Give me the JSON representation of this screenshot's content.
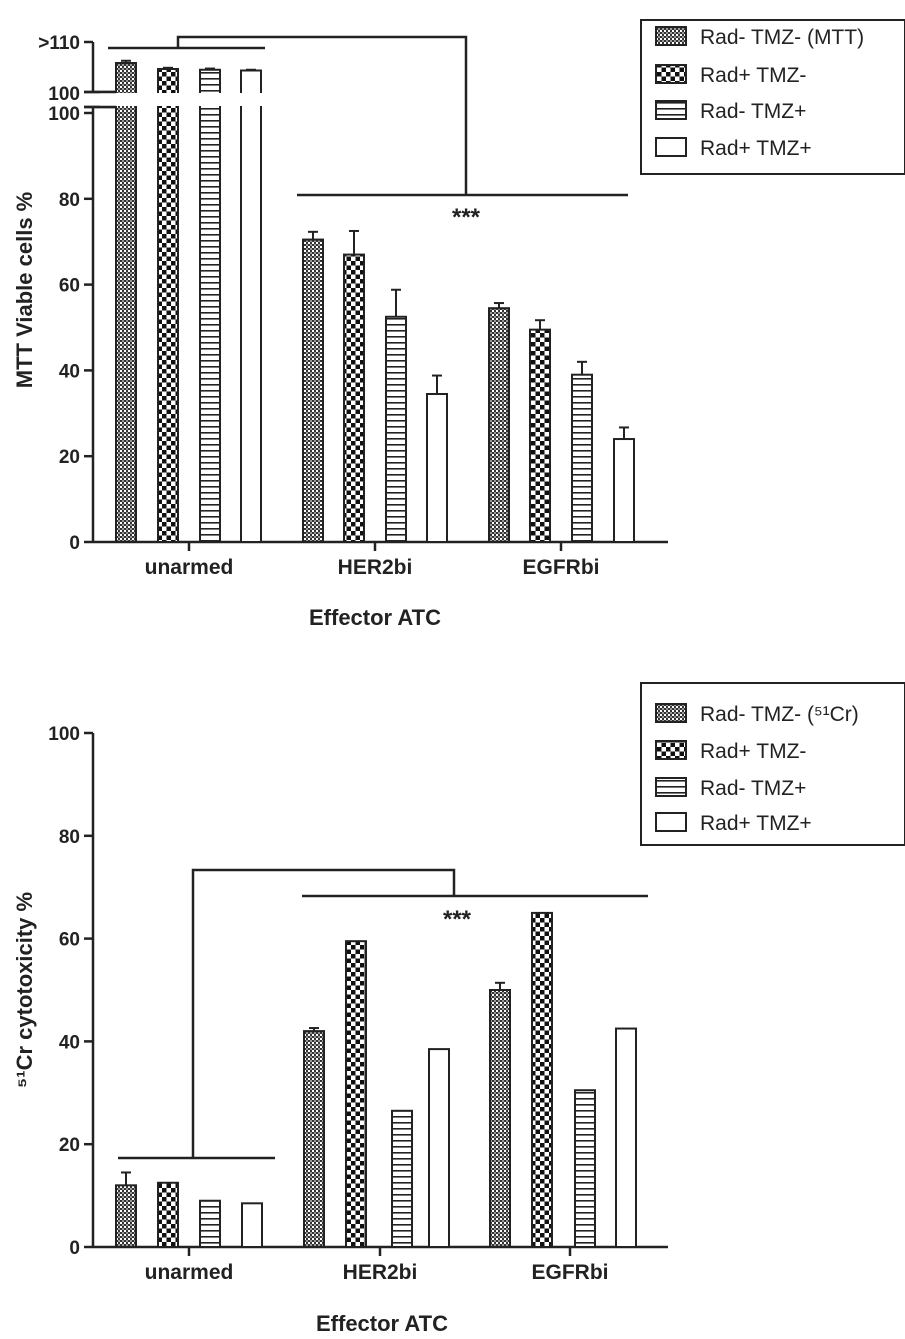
{
  "chart_data": [
    {
      "type": "bar",
      "xlabel": "Effector ATC",
      "ylabel": "MTT Viable cells %",
      "ylim": [
        0,
        100
      ],
      "y_ticks": [
        0,
        20,
        40,
        60,
        80,
        100
      ],
      "broken_axis_labels": [
        ">110",
        "100"
      ],
      "categories": [
        "unarmed",
        "HER2bi",
        "EGFRbi"
      ],
      "series": [
        {
          "name": "Rad- TMZ- (MTT)",
          "pattern": "crosshatch",
          "values": [
            108,
            70.5,
            54.5
          ],
          "errors": [
            1.5,
            1.8,
            1.2
          ]
        },
        {
          "name": "Rad+ TMZ-",
          "pattern": "checker",
          "values": [
            104,
            67,
            49.5
          ],
          "errors": [
            0.8,
            5.5,
            2.2
          ]
        },
        {
          "name": "Rad- TMZ+",
          "pattern": "horizontal-lines",
          "values": [
            103.5,
            52.5,
            39
          ],
          "errors": [
            0.8,
            6.3,
            3.0
          ]
        },
        {
          "name": "Rad+ TMZ+",
          "pattern": "open",
          "values": [
            103,
            34.5,
            24
          ],
          "errors": [
            0.5,
            4.3,
            2.7
          ]
        }
      ],
      "significance_label": "***",
      "legend_position": "top-right",
      "grid": false
    },
    {
      "type": "bar",
      "xlabel": "Effector ATC",
      "ylabel": "⁵¹Cr cytotoxicity %",
      "ylim": [
        0,
        100
      ],
      "y_ticks": [
        0,
        20,
        40,
        60,
        80,
        100
      ],
      "categories": [
        "unarmed",
        "HER2bi",
        "EGFRbi"
      ],
      "series": [
        {
          "name": "Rad- TMZ- (⁵¹Cr)",
          "pattern": "crosshatch",
          "values": [
            12,
            42,
            50
          ],
          "errors": [
            2.5,
            0.6,
            1.4
          ]
        },
        {
          "name": "Rad+ TMZ-",
          "pattern": "checker",
          "values": [
            12.5,
            59.5,
            65
          ],
          "errors": [
            0,
            0,
            0
          ]
        },
        {
          "name": "Rad- TMZ+",
          "pattern": "horizontal-lines",
          "values": [
            9,
            26.5,
            30.5
          ],
          "errors": [
            0,
            0,
            0
          ]
        },
        {
          "name": "Rad+ TMZ+",
          "pattern": "open",
          "values": [
            8.5,
            38.5,
            42.5
          ],
          "errors": [
            0,
            0,
            0
          ]
        }
      ],
      "significance_label": "***",
      "legend_position": "top-right",
      "grid": false
    }
  ]
}
